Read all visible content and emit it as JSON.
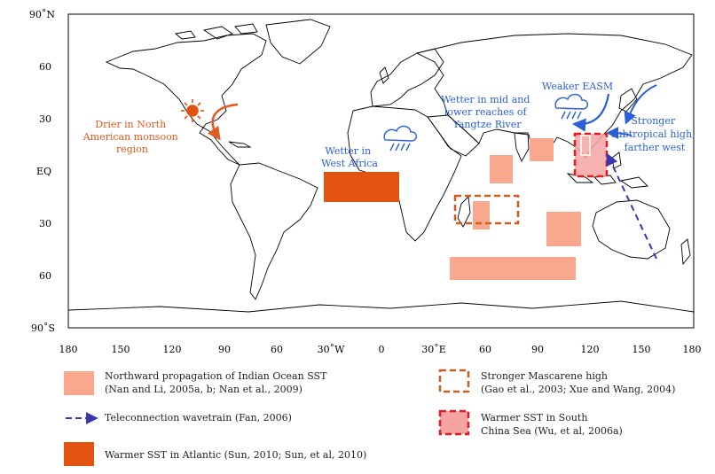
{
  "map": {
    "lat_labels": [
      "90˚N",
      "60",
      "30",
      "EQ",
      "30",
      "60",
      "90˚S"
    ],
    "lon_labels": [
      "180",
      "150",
      "120",
      "90",
      "60",
      "30˚W",
      "0",
      "30˚E",
      "60",
      "90",
      "120",
      "150",
      "180"
    ],
    "annotations": {
      "drier_na": [
        "Drier in North",
        "American monsoon",
        "region"
      ],
      "wetter_wa": [
        "Wetter in",
        "West Africa"
      ],
      "wetter_yangtze": [
        "Wetter in mid and",
        "lower reaches of",
        "Yangtze River"
      ],
      "weaker_easm": [
        "Weaker EASM"
      ],
      "stronger_high": [
        "Stronger",
        "subtropical high,",
        "farther west"
      ]
    },
    "colors": {
      "indian_ocean": "#f9a88e",
      "atlantic": "#e2530f",
      "mascarene": "#d45a1c",
      "scs_fill": "#f5a3a3",
      "scs_border": "#e01b1b",
      "blue": "#2a5fd8",
      "wavetrain": "#3b34b4",
      "orange_text": "#e05a22"
    }
  },
  "legend": {
    "indian_ocean": [
      "Northward propagation of Indian Ocean SST",
      "(Nan and Li, 2005a, b; Nan et al., 2009)"
    ],
    "wavetrain": [
      "Teleconnection wavetrain (Fan, 2006)"
    ],
    "atlantic": [
      "Warmer SST in Atlantic (Sun, 2010; Sun, et al, 2010)"
    ],
    "mascarene": [
      "Stronger Mascarene high",
      "(Gao et al., 2003; Xue and Wang, 2004)"
    ],
    "scs": [
      "Warmer SST in South",
      "China Sea (Wu, et al, 2006a)"
    ]
  }
}
